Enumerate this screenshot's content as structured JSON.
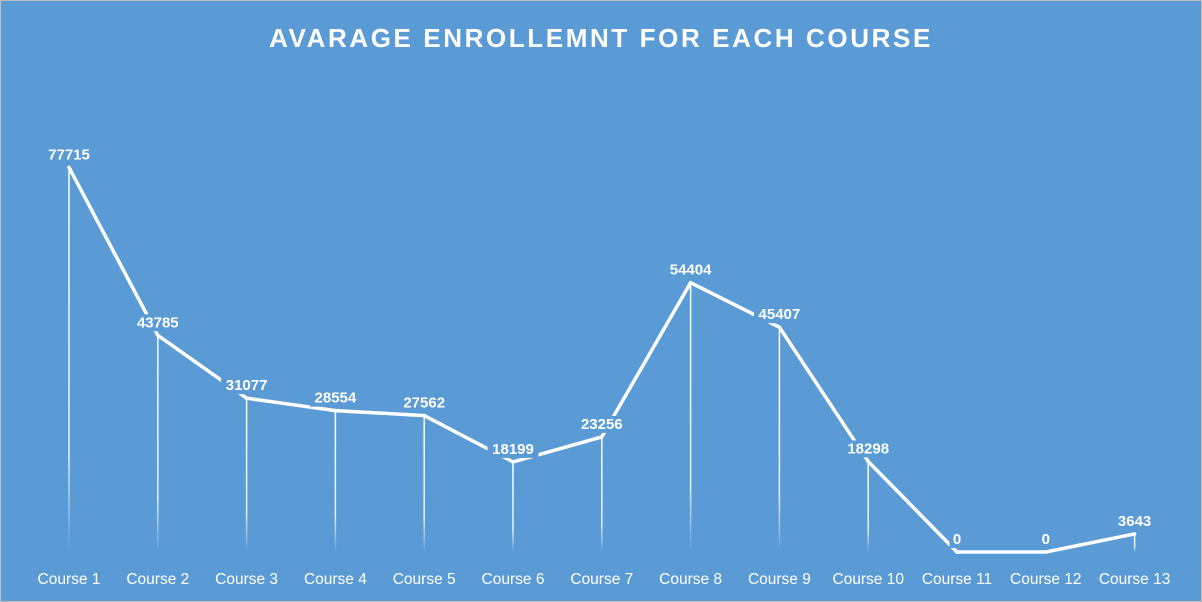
{
  "chart_data": {
    "type": "line",
    "title": "AVARAGE ENROLLEMNT FOR EACH COURSE",
    "categories": [
      "Course 1",
      "Course 2",
      "Course 3",
      "Course 4",
      "Course 5",
      "Course 6",
      "Course 7",
      "Course 8",
      "Course 9",
      "Course 10",
      "Course 11",
      "Course 12",
      "Course 13"
    ],
    "series": [
      {
        "values": [
          77715,
          43785,
          31077,
          28554,
          27562,
          18199,
          23256,
          54404,
          45407,
          18298,
          0,
          0,
          3643
        ],
        "data_labels": [
          "77715",
          "43785",
          "31077",
          "28554",
          "27562",
          "18199",
          "23256",
          "54404",
          "45407",
          "18298",
          "0",
          "0",
          "3643"
        ]
      }
    ],
    "ylim": [
      0,
      80000
    ],
    "grid": false,
    "drop_lines": true,
    "y_axis_visible": false,
    "colors": {
      "background": "#5b9bd5",
      "line": "#ffffff",
      "text": "#ffffff"
    }
  }
}
